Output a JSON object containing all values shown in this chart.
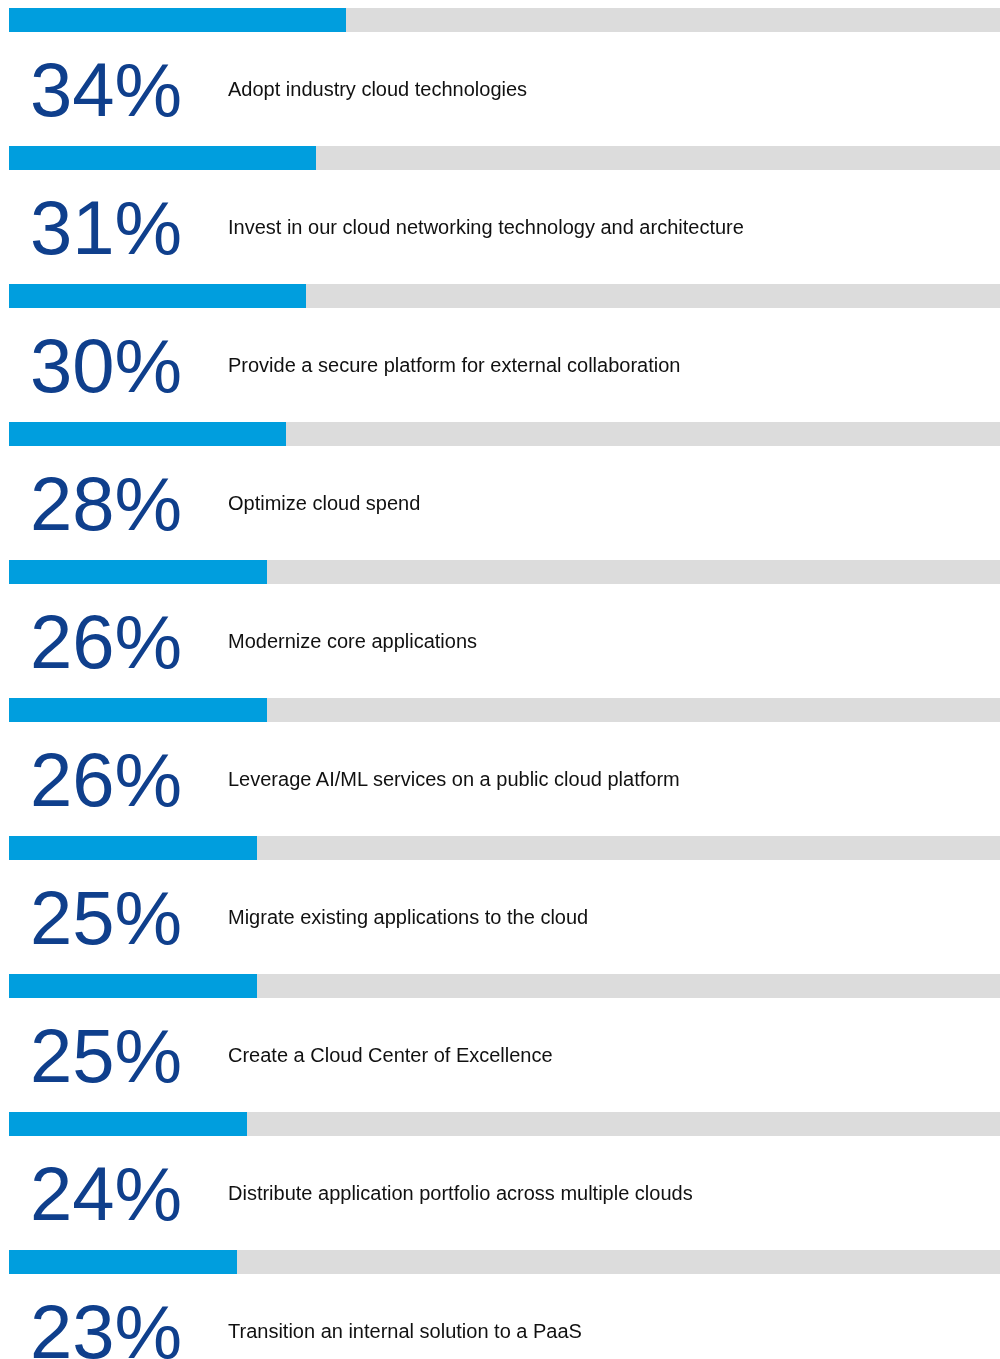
{
  "chart_data": {
    "type": "bar",
    "orientation": "horizontal",
    "stacked": true,
    "xlim": [
      0,
      100
    ],
    "categories": [
      "Adopt industry cloud technologies",
      "Invest in our cloud networking technology and architecture",
      "Provide a secure platform for external collaboration",
      "Optimize cloud spend",
      "Modernize core applications",
      "Leverage AI/ML services on a public cloud platform",
      "Migrate existing applications to the cloud",
      "Create a Cloud Center of Excellence",
      "Distribute application portfolio across multiple clouds",
      "Transition an internal solution to a PaaS"
    ],
    "series": [
      {
        "color": "#009ede",
        "values": [
          34,
          31,
          30,
          28,
          26,
          26,
          25,
          25,
          24,
          23
        ],
        "value_labels": [
          "34%",
          "31%",
          "30%",
          "28%",
          "26%",
          "26%",
          "25%",
          "25%",
          "24%",
          "23%"
        ]
      },
      {
        "color": "#dcdcdc",
        "values": [
          66,
          69,
          70,
          72,
          74,
          74,
          75,
          75,
          76,
          77
        ]
      }
    ]
  }
}
